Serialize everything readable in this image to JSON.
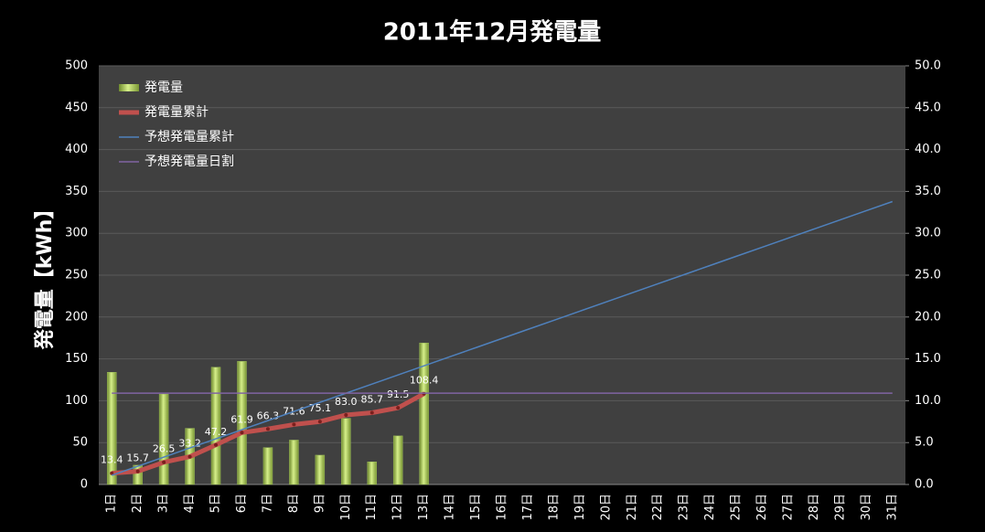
{
  "chart_data": {
    "type": "bar",
    "title": "2011年12月発電量",
    "ylabel": "発電量【kWh】",
    "categories": [
      "1日",
      "2日",
      "3日",
      "4日",
      "5日",
      "6日",
      "7日",
      "8日",
      "9日",
      "10日",
      "11日",
      "12日",
      "13日",
      "14日",
      "15日",
      "16日",
      "17日",
      "18日",
      "19日",
      "20日",
      "21日",
      "22日",
      "23日",
      "24日",
      "25日",
      "26日",
      "27日",
      "28日",
      "29日",
      "30日",
      "31日"
    ],
    "ylim": [
      0,
      500
    ],
    "yticks": [
      0,
      50,
      100,
      150,
      200,
      250,
      300,
      350,
      400,
      450,
      500
    ],
    "y2lim": [
      0,
      50
    ],
    "y2ticks": [
      {
        "value": 0,
        "label": "0.0"
      },
      {
        "value": 5,
        "label": "5.0"
      },
      {
        "value": 10,
        "label": "10.0"
      },
      {
        "value": 15,
        "label": "15.0"
      },
      {
        "value": 20,
        "label": "20.0"
      },
      {
        "value": 25,
        "label": "25.0"
      },
      {
        "value": 30,
        "label": "30.0"
      },
      {
        "value": 35,
        "label": "35.0"
      },
      {
        "value": 40,
        "label": "40.0"
      },
      {
        "value": 45,
        "label": "45.0"
      },
      {
        "value": 50,
        "label": "50.0"
      }
    ],
    "grid": true,
    "legend": "upper left",
    "series": [
      {
        "name": "発電量",
        "type": "bar",
        "axis": "y2",
        "color": "#9bbb59",
        "values": [
          13.4,
          2.3,
          10.8,
          6.7,
          14.0,
          14.7,
          4.4,
          5.3,
          3.5,
          7.9,
          2.7,
          5.8,
          16.9,
          null,
          null,
          null,
          null,
          null,
          null,
          null,
          null,
          null,
          null,
          null,
          null,
          null,
          null,
          null,
          null,
          null,
          null
        ]
      },
      {
        "name": "発電量累計",
        "type": "line",
        "color": "#c0504d",
        "values": [
          13.4,
          15.7,
          26.5,
          33.2,
          47.2,
          61.9,
          66.3,
          71.6,
          75.1,
          83.0,
          85.7,
          91.5,
          108.4,
          null,
          null,
          null,
          null,
          null,
          null,
          null,
          null,
          null,
          null,
          null,
          null,
          null,
          null,
          null,
          null,
          null,
          null
        ],
        "value_labels": [
          "13.4",
          "15.7",
          "26.5",
          "33.2",
          "47.2",
          "61.9",
          "66.3",
          "71.6",
          "75.1",
          "83.0",
          "85.7",
          "91.5",
          "108.4",
          null,
          null,
          null,
          null,
          null,
          null,
          null,
          null,
          null,
          null,
          null,
          null,
          null,
          null,
          null,
          null,
          null,
          null
        ]
      },
      {
        "name": "予想発電量累計",
        "type": "line",
        "color": "#4f81bd",
        "values": [
          10.9,
          21.8,
          32.7,
          43.6,
          54.5,
          65.4,
          76.3,
          87.2,
          98.1,
          109.0,
          119.9,
          130.8,
          141.7,
          152.6,
          163.5,
          174.4,
          185.3,
          196.2,
          207.1,
          218.0,
          228.9,
          239.8,
          250.7,
          261.6,
          272.5,
          283.4,
          294.3,
          305.2,
          316.1,
          327.0,
          337.9
        ]
      },
      {
        "name": "予想発電量日割",
        "type": "line",
        "axis": "y2",
        "color": "#8064a2",
        "values": [
          10.9,
          10.9,
          10.9,
          10.9,
          10.9,
          10.9,
          10.9,
          10.9,
          10.9,
          10.9,
          10.9,
          10.9,
          10.9,
          10.9,
          10.9,
          10.9,
          10.9,
          10.9,
          10.9,
          10.9,
          10.9,
          10.9,
          10.9,
          10.9,
          10.9,
          10.9,
          10.9,
          10.9,
          10.9,
          10.9,
          10.9
        ]
      }
    ]
  }
}
